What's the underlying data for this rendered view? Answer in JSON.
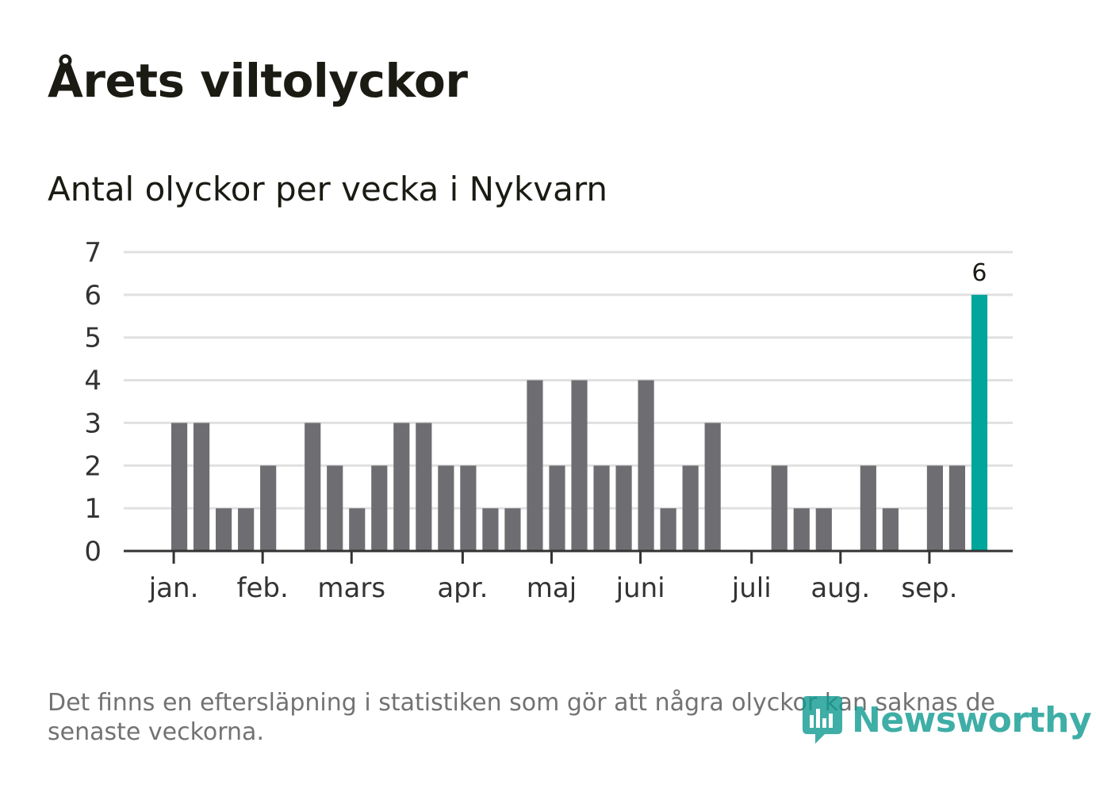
{
  "header": {
    "title": "Årets viltolyckor",
    "subtitle": "Antal olyckor per vecka i Nykvarn"
  },
  "footnote": "Det finns en eftersläpning i statistiken som gör att några olyckor kan saknas de senaste veckorna.",
  "brand": {
    "name": "Newsworthy",
    "color": "#0f9a90",
    "icon": "bar-chart-bubble-icon"
  },
  "colors": {
    "bar": "#6e6d71",
    "highlight": "#00a59b",
    "grid": "#e0e0e0",
    "axis": "#333333"
  },
  "chart_data": {
    "type": "bar",
    "title": "Antal olyckor per vecka i Nykvarn",
    "xlabel": "",
    "ylabel": "",
    "ylim": [
      0,
      7
    ],
    "yticks": [
      0,
      1,
      2,
      3,
      4,
      5,
      6,
      7
    ],
    "grid": true,
    "week_count": 40,
    "values": [
      null,
      null,
      3,
      3,
      1,
      1,
      2,
      null,
      3,
      2,
      1,
      2,
      3,
      3,
      2,
      2,
      1,
      1,
      4,
      2,
      4,
      2,
      2,
      4,
      1,
      2,
      3,
      null,
      null,
      2,
      1,
      1,
      null,
      2,
      1,
      null,
      2,
      2,
      6
    ],
    "highlight_index": 38,
    "data_labels": [
      {
        "index": 38,
        "text": "6"
      }
    ],
    "month_ticks": [
      {
        "label": "jan.",
        "week": 2.25
      },
      {
        "label": "feb.",
        "week": 6.25
      },
      {
        "label": "mars",
        "week": 10.25
      },
      {
        "label": "apr.",
        "week": 15.25
      },
      {
        "label": "maj",
        "week": 19.25
      },
      {
        "label": "juni",
        "week": 23.25
      },
      {
        "label": "juli",
        "week": 28.25
      },
      {
        "label": "aug.",
        "week": 32.25
      },
      {
        "label": "sep.",
        "week": 36.25
      }
    ]
  }
}
